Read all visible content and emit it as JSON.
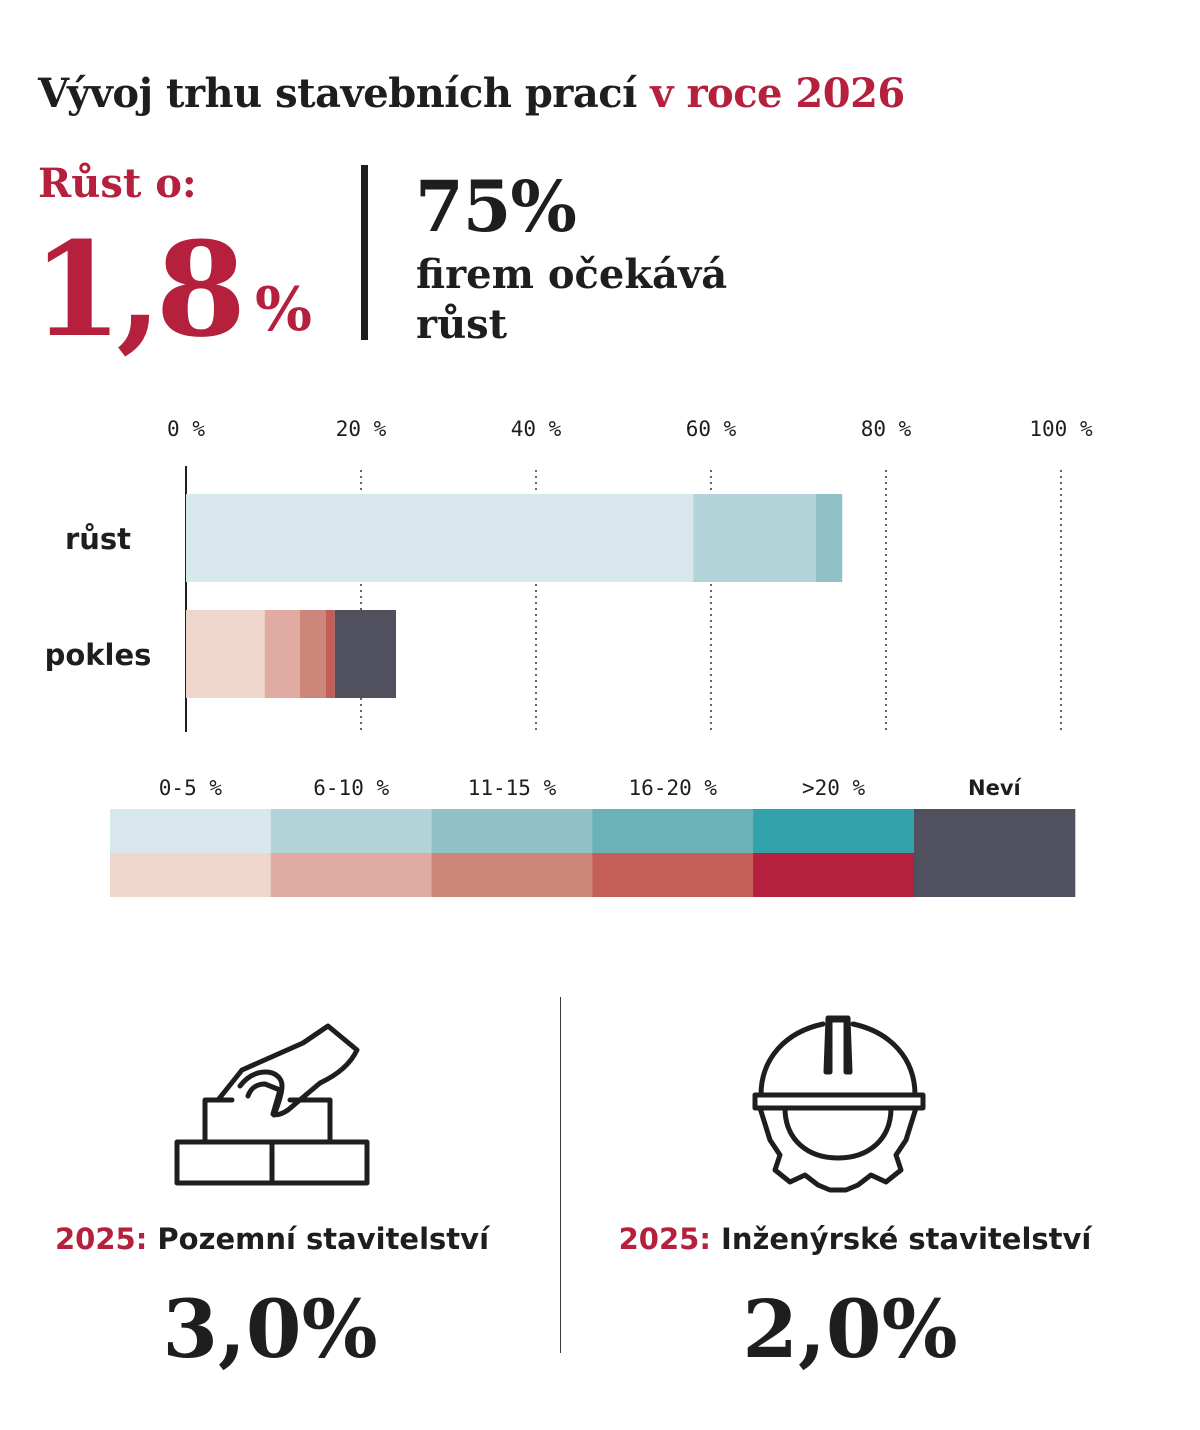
{
  "title": {
    "main": "Vývoj trhu stavebních prací",
    "highlight": "v roce 2026"
  },
  "kpi": {
    "growth_label": "Růst o:",
    "growth_value": "1,8",
    "growth_unit": "%",
    "share_value": "75%",
    "share_text": "firem očekává růst"
  },
  "chart_data": {
    "type": "bar",
    "orientation": "horizontal",
    "stacked": true,
    "categories": [
      "růst",
      "pokles"
    ],
    "xlim": [
      0,
      100
    ],
    "xticks": [
      "0 %",
      "20 %",
      "40 %",
      "60 %",
      "80 %",
      "100 %"
    ],
    "grid": "vertical dotted",
    "legend_position": "bottom",
    "series": [
      {
        "name": "0-5 %",
        "values": [
          58,
          9
        ]
      },
      {
        "name": "6-10 %",
        "values": [
          14,
          4
        ]
      },
      {
        "name": "11-15 %",
        "values": [
          3,
          3
        ]
      },
      {
        "name": "16-20 %",
        "values": [
          0,
          1
        ]
      },
      {
        "name": ">20 %",
        "values": [
          0,
          0
        ]
      },
      {
        "name": "Neví",
        "values": [
          0,
          7
        ]
      }
    ],
    "colors": {
      "růst": [
        "#d7e7eb",
        "#b2d4d8",
        "#8fc1c7",
        "#6ab2b7",
        "#33a2aa",
        "#50505f"
      ],
      "pokles": [
        "#eed6cc",
        "#dfaba2",
        "#cd867a",
        "#c35e59",
        "#b5203d",
        "#50505f"
      ]
    }
  },
  "sectors": [
    {
      "year": "2025:",
      "name": "Pozemní stavitelství",
      "value": "3,0%",
      "icon": "hand-bricks-icon"
    },
    {
      "year": "2025:",
      "name": "Inženýrské stavitelství",
      "value": "2,0%",
      "icon": "helmet-gear-icon"
    }
  ]
}
